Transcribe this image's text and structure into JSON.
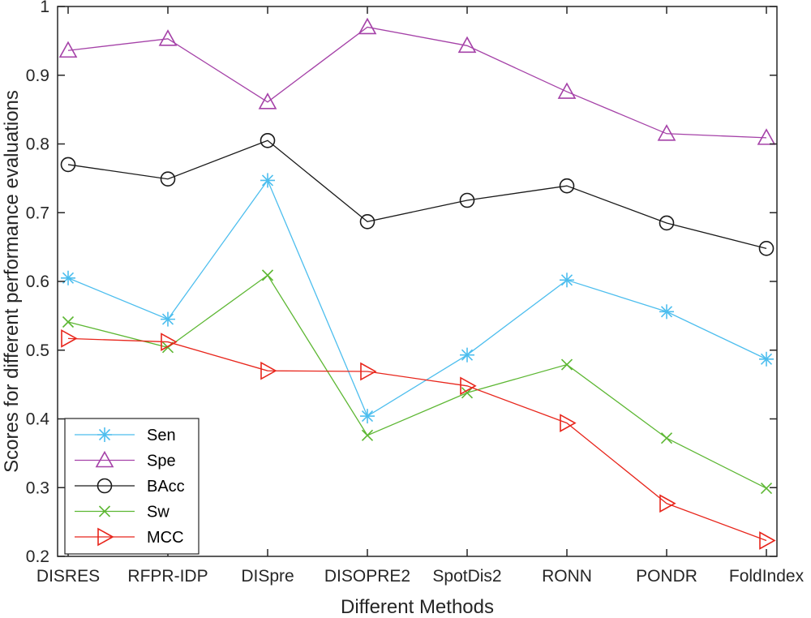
{
  "chart_data": {
    "type": "line",
    "xlabel": "Different Methods",
    "ylabel": "Scores for different performance evaluations",
    "categories": [
      "DISRES",
      "RFPR-IDP",
      "DISpre",
      "DISOPRE2",
      "SpotDis2",
      "RONN",
      "PONDR",
      "FoldIndex"
    ],
    "ylim": [
      0.2,
      1
    ],
    "yticks": [
      "0.2",
      "0.3",
      "0.4",
      "0.5",
      "0.6",
      "0.7",
      "0.8",
      "0.9",
      "1"
    ],
    "grid": false,
    "legend_position": "bottom-left",
    "series": [
      {
        "name": "Sen",
        "color": "#4dbeee",
        "marker": "asterisk",
        "values": [
          0.605,
          0.545,
          0.747,
          0.404,
          0.493,
          0.602,
          0.556,
          0.487
        ]
      },
      {
        "name": "Spe",
        "color": "#a542a8",
        "marker": "triangle-up",
        "values": [
          0.936,
          0.953,
          0.861,
          0.97,
          0.943,
          0.876,
          0.815,
          0.809
        ]
      },
      {
        "name": "BAcc",
        "color": "#1a1a1a",
        "marker": "circle",
        "values": [
          0.77,
          0.749,
          0.805,
          0.687,
          0.718,
          0.739,
          0.685,
          0.648
        ]
      },
      {
        "name": "Sw",
        "color": "#5db733",
        "marker": "cross",
        "values": [
          0.541,
          0.504,
          0.609,
          0.376,
          0.438,
          0.479,
          0.372,
          0.299
        ]
      },
      {
        "name": "MCC",
        "color": "#e8261c",
        "marker": "triangle-right",
        "values": [
          0.517,
          0.512,
          0.47,
          0.469,
          0.448,
          0.394,
          0.277,
          0.223
        ]
      }
    ]
  }
}
